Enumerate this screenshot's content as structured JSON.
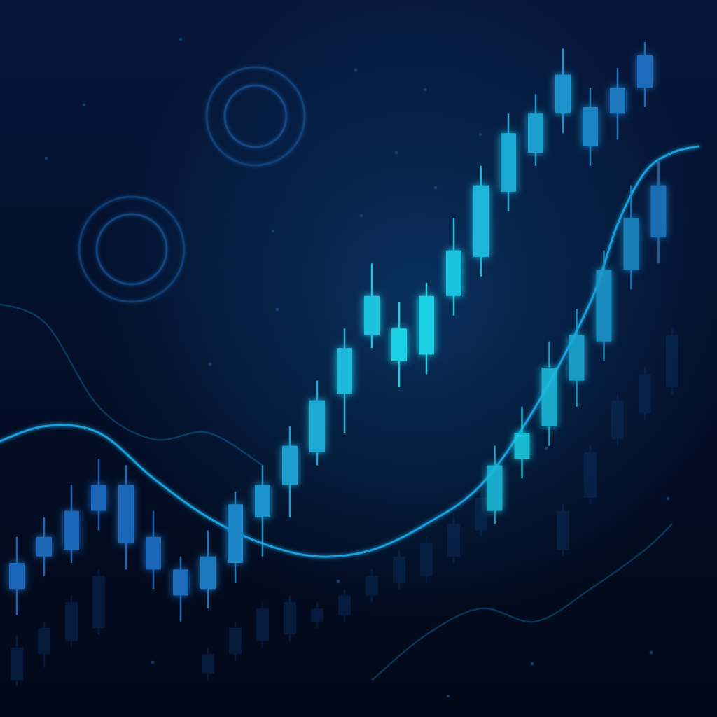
{
  "colors": {
    "background_top": "#06173a",
    "background_bottom": "#010818",
    "candle_dim": "#0d3060",
    "candle_mid": "#1a66b8",
    "candle_bright": "#1fd6e6",
    "trend_line": "#1aa8e6",
    "ring": "#1b5fa8"
  },
  "decorations": {
    "rings": 2,
    "style": "glowing double-circle ornaments"
  },
  "chart_data": {
    "type": "candlestick",
    "title": "",
    "xlabel": "",
    "ylabel": "",
    "ylim": [
      0,
      100
    ],
    "grid": false,
    "legend": "none",
    "series": [
      {
        "role": "main",
        "candles": [
          {
            "x": 1,
            "o": 16,
            "c": 20,
            "h": 24,
            "l": 12
          },
          {
            "x": 2,
            "o": 21,
            "c": 24,
            "h": 27,
            "l": 18
          },
          {
            "x": 3,
            "o": 22,
            "c": 28,
            "h": 32,
            "l": 20
          },
          {
            "x": 4,
            "o": 28,
            "c": 32,
            "h": 36,
            "l": 25
          },
          {
            "x": 5,
            "o": 23,
            "c": 32,
            "h": 35,
            "l": 19
          },
          {
            "x": 6,
            "o": 19,
            "c": 24,
            "h": 28,
            "l": 16
          },
          {
            "x": 7,
            "o": 15,
            "c": 19,
            "h": 21,
            "l": 11
          },
          {
            "x": 8,
            "o": 16,
            "c": 21,
            "h": 25,
            "l": 13
          },
          {
            "x": 9,
            "o": 20,
            "c": 29,
            "h": 31,
            "l": 17
          },
          {
            "x": 10,
            "o": 27,
            "c": 32,
            "h": 35,
            "l": 21
          },
          {
            "x": 11,
            "o": 32,
            "c": 38,
            "h": 41,
            "l": 27
          },
          {
            "x": 12,
            "o": 37,
            "c": 45,
            "h": 48,
            "l": 35
          },
          {
            "x": 13,
            "o": 46,
            "c": 53,
            "h": 56,
            "l": 40
          },
          {
            "x": 14,
            "o": 55,
            "c": 61,
            "h": 66,
            "l": 53
          },
          {
            "x": 15,
            "o": 51,
            "c": 56,
            "h": 60,
            "l": 47
          },
          {
            "x": 16,
            "o": 52,
            "c": 61,
            "h": 63,
            "l": 49
          },
          {
            "x": 17,
            "o": 61,
            "c": 68,
            "h": 73,
            "l": 58
          },
          {
            "x": 18,
            "o": 67,
            "c": 78,
            "h": 81,
            "l": 64
          },
          {
            "x": 19,
            "o": 77,
            "c": 86,
            "h": 89,
            "l": 74
          },
          {
            "x": 20,
            "o": 83,
            "c": 89,
            "h": 92,
            "l": 81
          },
          {
            "x": 21,
            "o": 89,
            "c": 95,
            "h": 99,
            "l": 86
          },
          {
            "x": 22,
            "o": 84,
            "c": 90,
            "h": 93,
            "l": 81
          },
          {
            "x": 23,
            "o": 89,
            "c": 93,
            "h": 96,
            "l": 85
          },
          {
            "x": 24,
            "o": 93,
            "c": 98,
            "h": 100,
            "l": 90
          }
        ]
      },
      {
        "role": "secondary",
        "candles": [
          {
            "x": 18.5,
            "o": 28,
            "c": 35,
            "h": 38,
            "l": 26
          },
          {
            "x": 19.5,
            "o": 36,
            "c": 40,
            "h": 44,
            "l": 33
          },
          {
            "x": 20.5,
            "o": 41,
            "c": 50,
            "h": 54,
            "l": 38
          },
          {
            "x": 21.5,
            "o": 48,
            "c": 55,
            "h": 59,
            "l": 44
          },
          {
            "x": 22.5,
            "o": 54,
            "c": 65,
            "h": 68,
            "l": 51
          },
          {
            "x": 23.5,
            "o": 65,
            "c": 73,
            "h": 78,
            "l": 62
          },
          {
            "x": 24.5,
            "o": 70,
            "c": 78,
            "h": 82,
            "l": 66
          }
        ]
      },
      {
        "role": "background",
        "candles": [
          {
            "x": 1,
            "o": 2,
            "c": 7,
            "h": 9,
            "l": 1
          },
          {
            "x": 2,
            "o": 6,
            "c": 10,
            "h": 11,
            "l": 4
          },
          {
            "x": 3,
            "o": 8,
            "c": 14,
            "h": 15,
            "l": 7
          },
          {
            "x": 4,
            "o": 10,
            "c": 18,
            "h": 19,
            "l": 9
          },
          {
            "x": 8,
            "o": 3,
            "c": 6,
            "h": 7,
            "l": 2
          },
          {
            "x": 9,
            "o": 6,
            "c": 10,
            "h": 11,
            "l": 5
          },
          {
            "x": 10,
            "o": 8,
            "c": 13,
            "h": 14,
            "l": 7
          },
          {
            "x": 11,
            "o": 9,
            "c": 14,
            "h": 15,
            "l": 8
          },
          {
            "x": 12,
            "o": 11,
            "c": 13,
            "h": 14,
            "l": 10
          },
          {
            "x": 13,
            "o": 12,
            "c": 15,
            "h": 16,
            "l": 11
          },
          {
            "x": 14,
            "o": 15,
            "c": 18,
            "h": 19,
            "l": 14
          },
          {
            "x": 15,
            "o": 17,
            "c": 21,
            "h": 22,
            "l": 16
          },
          {
            "x": 16,
            "o": 18,
            "c": 23,
            "h": 24,
            "l": 17
          },
          {
            "x": 17,
            "o": 21,
            "c": 26,
            "h": 27,
            "l": 20
          },
          {
            "x": 18,
            "o": 25,
            "c": 30,
            "h": 31,
            "l": 24
          },
          {
            "x": 21,
            "o": 22,
            "c": 28,
            "h": 29,
            "l": 21
          },
          {
            "x": 22,
            "o": 30,
            "c": 37,
            "h": 38,
            "l": 29
          },
          {
            "x": 23,
            "o": 39,
            "c": 45,
            "h": 46,
            "l": 38
          },
          {
            "x": 24,
            "o": 43,
            "c": 49,
            "h": 50,
            "l": 42
          },
          {
            "x": 25,
            "o": 47,
            "c": 55,
            "h": 56,
            "l": 46
          }
        ]
      }
    ],
    "lines": [
      {
        "role": "main-trend",
        "points": [
          [
            0,
            38
          ],
          [
            2,
            41
          ],
          [
            4,
            40
          ],
          [
            6,
            33
          ],
          [
            8,
            27
          ],
          [
            10,
            23
          ],
          [
            12,
            21
          ],
          [
            14,
            22
          ],
          [
            16,
            26
          ],
          [
            18,
            32
          ],
          [
            20,
            44
          ],
          [
            22,
            60
          ],
          [
            23,
            72
          ],
          [
            24,
            80
          ],
          [
            25,
            83
          ],
          [
            26,
            84
          ]
        ]
      },
      {
        "role": "faint-upper",
        "points": [
          [
            0,
            60
          ],
          [
            2,
            57
          ],
          [
            4,
            44
          ],
          [
            6,
            39
          ],
          [
            8,
            40
          ],
          [
            10,
            35
          ]
        ]
      },
      {
        "role": "faint-lower",
        "points": [
          [
            14,
            2
          ],
          [
            16,
            9
          ],
          [
            18,
            13
          ],
          [
            20,
            11
          ],
          [
            22,
            16
          ],
          [
            24,
            22
          ],
          [
            25,
            26
          ]
        ]
      }
    ]
  }
}
